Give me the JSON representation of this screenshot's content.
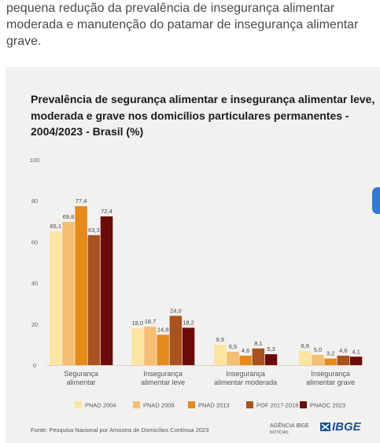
{
  "intro_text": "pequena redução da prevalência de insegurança alimentar moderada e manutenção do patamar de insegurança alimentar grave.",
  "chart_data": {
    "type": "bar",
    "title": "Prevalência de segurança alimentar e insegurança alimentar leve, moderada e grave nos domicílios particulares permanentes - 2004/2023 - Brasil (%)",
    "categories": [
      [
        "Segurança",
        "alimentar"
      ],
      [
        "Insegurança",
        "alimentar leve"
      ],
      [
        "Insegurança",
        "alimentar moderada"
      ],
      [
        "Insegurança",
        "alimentar grave"
      ]
    ],
    "series": [
      {
        "name": "PNAD 2004",
        "color": "#fbe5a0",
        "values": [
          65.1,
          18.0,
          9.9,
          6.9
        ]
      },
      {
        "name": "PNAD 2009",
        "color": "#f5bf73",
        "values": [
          69.8,
          18.7,
          6.5,
          5.0
        ]
      },
      {
        "name": "PNAD 2013",
        "color": "#e58a1c",
        "values": [
          77.4,
          14.8,
          4.6,
          3.2
        ]
      },
      {
        "name": "POF 2017-2018",
        "color": "#a8521f",
        "values": [
          63.3,
          24.0,
          8.1,
          4.6
        ]
      },
      {
        "name": "PNADC 2023",
        "color": "#6b0b0b",
        "values": [
          72.4,
          18.2,
          5.3,
          4.1
        ]
      }
    ],
    "ylim": [
      0,
      100
    ],
    "yticks": [
      "0",
      "20",
      "40",
      "60",
      "80",
      "100"
    ],
    "grid": false,
    "legend_position": "bottom"
  },
  "source": "Fonte: Pesquisa Nacional por Amostra de Domicílios Contínua 2023",
  "logos": {
    "agencia_line1": "AGÊNCIA IBGE",
    "agencia_line2": "NOTÍCIAS",
    "ibge": "IBGE"
  }
}
